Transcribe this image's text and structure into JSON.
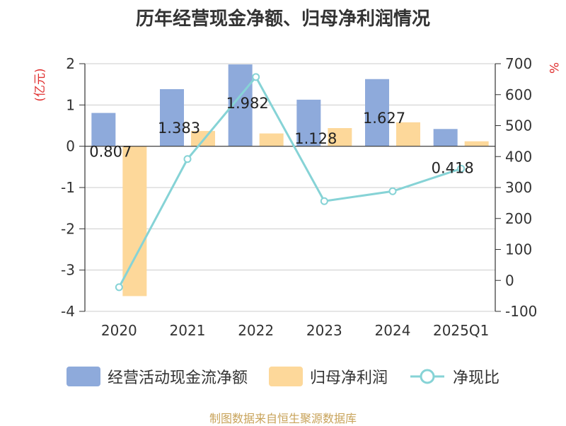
{
  "chart_data": {
    "type": "bar",
    "title": "历年经营现金净额、归母净利润情况",
    "categories": [
      "2020",
      "2021",
      "2022",
      "2023",
      "2024",
      "2025Q1"
    ],
    "left_axis": {
      "unit": "(亿元)",
      "ylim": [
        -4,
        2
      ],
      "ticks": [
        "2",
        "1",
        "0",
        "-1",
        "-2",
        "-3",
        "-4"
      ]
    },
    "right_axis": {
      "unit": "%",
      "ylim": [
        -100,
        700
      ],
      "ticks": [
        "700",
        "600",
        "500",
        "400",
        "300",
        "200",
        "100",
        "0",
        "-100"
      ]
    },
    "series": [
      {
        "name": "经营活动现金流净额",
        "axis": "left",
        "type": "bar",
        "color": "#8eaadb",
        "values": [
          0.807,
          1.383,
          1.982,
          1.128,
          1.627,
          0.418
        ],
        "labels": [
          "0.807",
          "1.383",
          "1.982",
          "1.128",
          "1.627",
          "0.418"
        ]
      },
      {
        "name": "归母净利润",
        "axis": "left",
        "type": "bar",
        "color": "#fdd89a",
        "values": [
          -3.63,
          0.37,
          0.31,
          0.44,
          0.58,
          0.12
        ]
      },
      {
        "name": "净现比",
        "axis": "right",
        "type": "line",
        "color": "#86d3d6",
        "values": [
          -22,
          392,
          657,
          256,
          288,
          361
        ]
      }
    ]
  },
  "source": {
    "text": "制图数据来自恒生聚源数据库",
    "color": "#c8a35a"
  }
}
